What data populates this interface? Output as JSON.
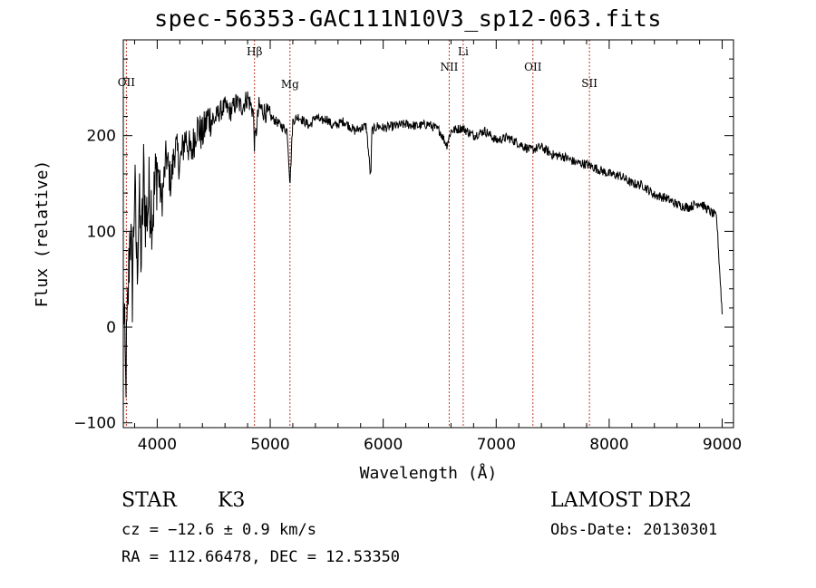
{
  "title": "spec-56353-GAC111N10V3_sp12-063.fits",
  "chart_data": {
    "type": "line",
    "title": "spec-56353-GAC111N10V3_sp12-063.fits",
    "xlabel": "Wavelength (Å)",
    "ylabel": "Flux (relative)",
    "xlim": [
      3700,
      9100
    ],
    "ylim": [
      -105,
      300
    ],
    "xticks": [
      4000,
      5000,
      6000,
      7000,
      8000,
      9000
    ],
    "xtick_labels": [
      "4000",
      "5000",
      "6000",
      "7000",
      "8000",
      "9000"
    ],
    "yticks": [
      -100,
      0,
      100,
      200
    ],
    "ytick_labels": [
      "−100",
      "0",
      "100",
      "200"
    ],
    "grid": false,
    "series": [
      {
        "x": [
          3700,
          3720,
          3740,
          3760,
          3780,
          3800,
          3820,
          3840,
          3860,
          3880,
          3900,
          3930,
          3960,
          4000,
          4040,
          4080,
          4120,
          4160,
          4200,
          4250,
          4300,
          4350,
          4400,
          4450,
          4500,
          4550,
          4600,
          4650,
          4700,
          4750,
          4800,
          4850,
          4861,
          4900,
          4950,
          5000,
          5050,
          5100,
          5150,
          5175,
          5200,
          5250,
          5300,
          5350,
          5400,
          5450,
          5500,
          5550,
          5600,
          5650,
          5700,
          5750,
          5800,
          5850,
          5890,
          5900,
          5950,
          6000,
          6100,
          6200,
          6300,
          6400,
          6500,
          6563,
          6600,
          6700,
          6800,
          6900,
          7000,
          7100,
          7200,
          7300,
          7400,
          7500,
          7600,
          7700,
          7800,
          7900,
          8000,
          8100,
          8200,
          8300,
          8400,
          8500,
          8600,
          8700,
          8800,
          8900,
          8950,
          9000
        ],
        "y": [
          40,
          -60,
          20,
          110,
          40,
          150,
          60,
          130,
          70,
          160,
          110,
          140,
          120,
          170,
          130,
          180,
          150,
          190,
          170,
          200,
          180,
          210,
          200,
          220,
          215,
          225,
          230,
          225,
          235,
          230,
          240,
          225,
          190,
          230,
          225,
          220,
          215,
          210,
          205,
          150,
          215,
          220,
          215,
          210,
          220,
          215,
          218,
          210,
          212,
          215,
          210,
          205,
          208,
          210,
          155,
          205,
          210,
          208,
          210,
          212,
          210,
          212,
          205,
          190,
          205,
          208,
          200,
          205,
          195,
          198,
          192,
          185,
          188,
          180,
          178,
          172,
          170,
          165,
          160,
          158,
          150,
          148,
          138,
          135,
          128,
          125,
          130,
          120,
          115,
          15
        ]
      }
    ],
    "emission_lines": [
      {
        "name": "OII",
        "wavelength": 3727
      },
      {
        "name": "Hβ",
        "wavelength": 4861
      },
      {
        "name": "Mg",
        "wavelength": 5175
      },
      {
        "name": "NII",
        "wavelength": 6584
      },
      {
        "name": "Li",
        "wavelength": 6708
      },
      {
        "name": "OII",
        "wavelength": 7325
      },
      {
        "name": "SII",
        "wavelength": 7825
      }
    ],
    "line_color": "#000000",
    "marker_color": "#c0392b"
  },
  "info": {
    "object_class": "STAR",
    "subclass": "K3",
    "survey": "LAMOST DR2",
    "cz": "cz = −12.6 ± 0.9 km/s",
    "obs_date": "Obs-Date: 20130301",
    "coords": "RA = 112.66478, DEC =  12.53350"
  }
}
